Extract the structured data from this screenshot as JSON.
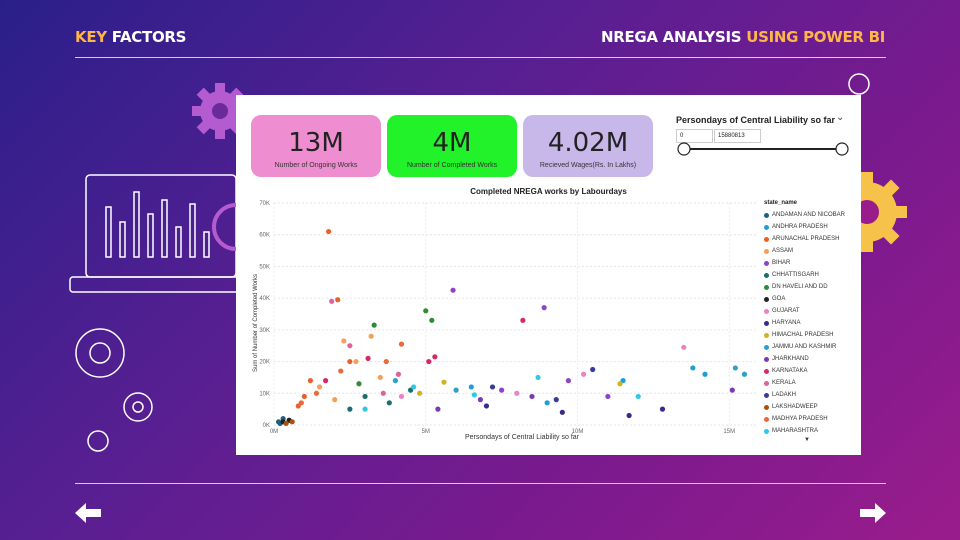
{
  "header": {
    "left_a": "KEY",
    "left_b": " FACTORS",
    "right_a": "NREGA ANALYSIS",
    "right_b": " USING POWER BI"
  },
  "cards": [
    {
      "value": "13M",
      "label": "Number of Ongoing Works",
      "color": "#ee8ed0"
    },
    {
      "value": "4M",
      "label": "Number of Completed Works",
      "color": "#21f22a"
    },
    {
      "value": "4.02M",
      "label": "Recieved Wages(Rs. In Lakhs)",
      "color": "#c8b8ea"
    }
  ],
  "slicer": {
    "title": "Persondays of Central Liability so far",
    "min_value": "0",
    "max_value": "15880813",
    "range": [
      0,
      15880813
    ]
  },
  "chart_data": {
    "type": "scatter",
    "title": "Completed NREGA works by Labourdays",
    "xlabel": "Persondays of Central Liability so far",
    "ylabel": "Sum of Number of Completed Works",
    "xlim": [
      0,
      15880813
    ],
    "ylim": [
      0,
      70000
    ],
    "x_ticks": [
      {
        "v": 0,
        "label": "0M"
      },
      {
        "v": 5000000,
        "label": "5M"
      },
      {
        "v": 10000000,
        "label": "10M"
      },
      {
        "v": 15000000,
        "label": "15M"
      }
    ],
    "y_ticks": [
      {
        "v": 0,
        "label": "0K"
      },
      {
        "v": 10000,
        "label": "10K"
      },
      {
        "v": 20000,
        "label": "20K"
      },
      {
        "v": 30000,
        "label": "30K"
      },
      {
        "v": 40000,
        "label": "40K"
      },
      {
        "v": 50000,
        "label": "50K"
      },
      {
        "v": 60000,
        "label": "60K"
      },
      {
        "v": 70000,
        "label": "70K"
      }
    ],
    "grid": true,
    "legend_title": "state_name",
    "legend_placement": "right",
    "series": [
      {
        "name": "ANDAMAN AND NICOBAR",
        "color": "#1e5f84",
        "points": [
          [
            150000,
            1000
          ],
          [
            300000,
            2000
          ],
          [
            200000,
            500
          ]
        ]
      },
      {
        "name": "ANDHRA PRADESH",
        "color": "#1e9ed6",
        "points": [
          [
            13800000,
            18000
          ],
          [
            14200000,
            16000
          ],
          [
            11500000,
            14000
          ],
          [
            9000000,
            7000
          ],
          [
            6500000,
            12000
          ]
        ]
      },
      {
        "name": "ARUNACHAL PRADESH",
        "color": "#e8612c",
        "points": [
          [
            1800000,
            61000
          ],
          [
            2100000,
            39500
          ],
          [
            1200000,
            14000
          ],
          [
            2500000,
            20000
          ],
          [
            1000000,
            9000
          ],
          [
            800000,
            6000
          ]
        ]
      },
      {
        "name": "ASSAM",
        "color": "#f0a05a",
        "points": [
          [
            2300000,
            26500
          ],
          [
            3200000,
            28000
          ],
          [
            2700000,
            20000
          ],
          [
            1500000,
            12000
          ],
          [
            2000000,
            8000
          ],
          [
            3500000,
            15000
          ]
        ]
      },
      {
        "name": "BIHAR",
        "color": "#8e44c8",
        "points": [
          [
            5900000,
            42500
          ],
          [
            8900000,
            37000
          ],
          [
            9700000,
            14000
          ],
          [
            11000000,
            9000
          ],
          [
            7500000,
            11000
          ]
        ]
      },
      {
        "name": "CHHATTISGARH",
        "color": "#1a6e6e",
        "points": [
          [
            2500000,
            5000
          ],
          [
            3000000,
            9000
          ],
          [
            4500000,
            11000
          ],
          [
            3800000,
            7000
          ]
        ]
      },
      {
        "name": "DN HAVELI AND DD",
        "color": "#2e8b3a",
        "points": [
          [
            5000000,
            36000
          ],
          [
            5200000,
            33000
          ],
          [
            3300000,
            31500
          ],
          [
            2800000,
            13000
          ]
        ]
      },
      {
        "name": "GOA",
        "color": "#222222",
        "points": [
          [
            300000,
            1000
          ],
          [
            500000,
            1500
          ]
        ]
      },
      {
        "name": "GUJARAT",
        "color": "#e884c4",
        "points": [
          [
            13500000,
            24500
          ],
          [
            10200000,
            16000
          ],
          [
            8000000,
            10000
          ],
          [
            4200000,
            9000
          ]
        ]
      },
      {
        "name": "HARYANA",
        "color": "#3a2a8e",
        "points": [
          [
            11700000,
            3000
          ],
          [
            12800000,
            5000
          ],
          [
            7000000,
            6000
          ],
          [
            9500000,
            4000
          ]
        ]
      },
      {
        "name": "HIMACHAL PRADESH",
        "color": "#d4b21e",
        "points": [
          [
            11400000,
            13000
          ],
          [
            5600000,
            13500
          ],
          [
            4800000,
            10000
          ]
        ]
      },
      {
        "name": "JAMMU AND KASHMIR",
        "color": "#2ea0c8",
        "points": [
          [
            15200000,
            18000
          ],
          [
            15500000,
            16000
          ],
          [
            6000000,
            11000
          ],
          [
            4000000,
            14000
          ]
        ]
      },
      {
        "name": "JHARKHAND",
        "color": "#7a3ab8",
        "points": [
          [
            15100000,
            11000
          ],
          [
            8500000,
            9000
          ],
          [
            6800000,
            8000
          ],
          [
            5400000,
            5000
          ]
        ]
      },
      {
        "name": "KARNATAKA",
        "color": "#d62866",
        "points": [
          [
            8200000,
            33000
          ],
          [
            5300000,
            21500
          ],
          [
            5100000,
            20000
          ],
          [
            3100000,
            21000
          ],
          [
            1700000,
            14000
          ]
        ]
      },
      {
        "name": "KERALA",
        "color": "#e060a0",
        "points": [
          [
            1900000,
            39000
          ],
          [
            2500000,
            25000
          ],
          [
            4100000,
            16000
          ],
          [
            3600000,
            10000
          ]
        ]
      },
      {
        "name": "LADAKH",
        "color": "#3a3a9e",
        "points": [
          [
            10500000,
            17500
          ],
          [
            9300000,
            8000
          ],
          [
            7200000,
            12000
          ]
        ]
      },
      {
        "name": "LAKSHADWEEP",
        "color": "#b05010",
        "points": [
          [
            400000,
            500
          ],
          [
            600000,
            1000
          ]
        ]
      },
      {
        "name": "MADHYA PRADESH",
        "color": "#e86a3a",
        "points": [
          [
            4200000,
            25500
          ],
          [
            3700000,
            20000
          ],
          [
            2200000,
            17000
          ],
          [
            1400000,
            10000
          ],
          [
            900000,
            7000
          ]
        ]
      },
      {
        "name": "MAHARASHTRA",
        "color": "#2ec8e8",
        "points": [
          [
            12000000,
            9000
          ],
          [
            8700000,
            15000
          ],
          [
            6600000,
            9500
          ],
          [
            4600000,
            12000
          ],
          [
            3000000,
            5000
          ]
        ]
      }
    ]
  },
  "legend_more": "▼"
}
